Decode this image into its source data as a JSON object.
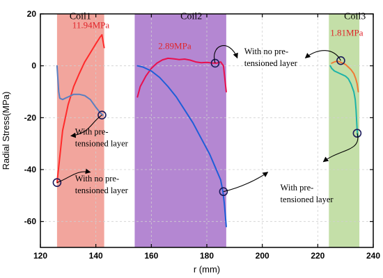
{
  "chart_data": {
    "type": "line",
    "xlabel": "r (mm)",
    "ylabel": "Radial Stress(MPa)",
    "xlim": [
      120,
      240
    ],
    "ylim": [
      -70,
      20
    ],
    "xticks": [
      120,
      140,
      160,
      180,
      200,
      220,
      240
    ],
    "yticks": [
      -60,
      -40,
      -20,
      0,
      20
    ],
    "xtick_labels": [
      "120",
      "140",
      "160",
      "180",
      "200",
      "220",
      "240"
    ],
    "ytick_labels": [
      "-60",
      "-40",
      "-20",
      "0",
      "20"
    ],
    "grid": true,
    "regions": [
      {
        "label": "Coil1",
        "x0": 126,
        "x1": 143,
        "color": "#f2a59d"
      },
      {
        "label": "Coil2",
        "x0": 154,
        "x1": 187,
        "color": "#b487d2"
      },
      {
        "label": "Coil3",
        "x0": 224,
        "x1": 235,
        "color": "#c4dfa8"
      }
    ],
    "series": [
      {
        "color": "#ff2a2a",
        "points": [
          [
            126,
            -45
          ],
          [
            127,
            -35
          ],
          [
            128,
            -25
          ],
          [
            130,
            -15
          ],
          [
            132,
            -8
          ],
          [
            134,
            -3
          ],
          [
            136,
            1.5
          ],
          [
            138,
            5
          ],
          [
            140,
            8.5
          ],
          [
            141.5,
            11
          ],
          [
            142.2,
            11.94
          ],
          [
            142.5,
            10
          ],
          [
            143,
            7
          ]
        ]
      },
      {
        "color": "#5a7fc0",
        "points": [
          [
            126,
            0
          ],
          [
            126.3,
            -5
          ],
          [
            126.6,
            -10
          ],
          [
            127,
            -12.5
          ],
          [
            128,
            -13
          ],
          [
            129,
            -12.5
          ],
          [
            130,
            -12
          ],
          [
            131,
            -11.5
          ],
          [
            132,
            -11
          ],
          [
            134,
            -11
          ],
          [
            136,
            -11.5
          ],
          [
            138,
            -13
          ],
          [
            140,
            -16
          ],
          [
            141.5,
            -18
          ],
          [
            142.5,
            -19
          ]
        ]
      },
      {
        "color": "#e8104e",
        "points": [
          [
            155,
            -12
          ],
          [
            156,
            -8
          ],
          [
            158,
            -4
          ],
          [
            160,
            -1
          ],
          [
            162,
            1
          ],
          [
            164,
            2.3
          ],
          [
            166,
            2.89
          ],
          [
            168,
            2.7
          ],
          [
            170,
            2.4
          ],
          [
            172,
            2.6
          ],
          [
            174,
            2.2
          ],
          [
            176,
            1.5
          ],
          [
            178,
            1.2
          ],
          [
            180,
            1.3
          ],
          [
            182,
            1.1
          ],
          [
            183.5,
            1
          ],
          [
            185,
            1.5
          ],
          [
            186,
            0
          ],
          [
            186.5,
            -5
          ],
          [
            187,
            -10
          ]
        ]
      },
      {
        "color": "#1e5ed8",
        "points": [
          [
            155,
            0
          ],
          [
            157,
            -0.5
          ],
          [
            160,
            -2
          ],
          [
            163,
            -4.5
          ],
          [
            166,
            -8
          ],
          [
            169,
            -12
          ],
          [
            172,
            -17
          ],
          [
            175,
            -22
          ],
          [
            177,
            -26
          ],
          [
            179,
            -30
          ],
          [
            181,
            -34
          ],
          [
            183,
            -39
          ],
          [
            185,
            -44
          ],
          [
            185.8,
            -48.5
          ],
          [
            186.3,
            -53
          ],
          [
            186.7,
            -58
          ],
          [
            187,
            -62
          ]
        ]
      },
      {
        "color": "#f07a35",
        "points": [
          [
            225,
            1
          ],
          [
            226,
            1.5
          ],
          [
            227,
            1.81
          ],
          [
            228,
            1.5
          ],
          [
            229,
            1
          ],
          [
            230,
            0.5
          ],
          [
            231,
            -0.5
          ],
          [
            232,
            -1.5
          ],
          [
            233,
            -3
          ],
          [
            233.7,
            -5
          ],
          [
            234.2,
            -7
          ],
          [
            234.6,
            -10
          ]
        ]
      },
      {
        "color": "#1cb3a8",
        "points": [
          [
            224.5,
            0
          ],
          [
            225,
            -1
          ],
          [
            226,
            -2
          ],
          [
            227,
            -2.5
          ],
          [
            228,
            -3
          ],
          [
            229,
            -3.5
          ],
          [
            230,
            -4
          ],
          [
            231,
            -5
          ],
          [
            232,
            -7
          ],
          [
            233,
            -10
          ],
          [
            233.5,
            -13
          ],
          [
            233.8,
            -17
          ],
          [
            234,
            -21
          ],
          [
            234.2,
            -25
          ],
          [
            234.4,
            -27
          ]
        ]
      }
    ],
    "markers": [
      [
        126,
        -45
      ],
      [
        142.2,
        -19
      ],
      [
        183,
        1
      ],
      [
        186,
        -48.5
      ],
      [
        228.3,
        2
      ],
      [
        234.2,
        -26
      ]
    ],
    "peak_labels": [
      {
        "text": "11.94MPa",
        "x": 131.5,
        "y": 14.5,
        "color": "#e0242a"
      },
      {
        "text": "2.89MPa",
        "x": 162.5,
        "y": 6.5,
        "color": "#e0242a"
      },
      {
        "text": "1.81MPa",
        "x": 224.5,
        "y": 11.5,
        "color": "#e0242a"
      }
    ],
    "annotations": [
      {
        "lines": [
          "With pre-",
          "tensioned layer"
        ],
        "x": 132.5,
        "y": -26.5
      },
      {
        "lines": [
          "With no pre-",
          "tensioned layer"
        ],
        "x": 132.5,
        "y": -44.5
      },
      {
        "lines": [
          "With no pre-",
          "tensioned layer"
        ],
        "x": 193.5,
        "y": 4.5
      },
      {
        "lines": [
          "With pre-",
          "tensioned layer"
        ],
        "x": 206.5,
        "y": -48
      },
      {
        "lines": [
          "Coil1"
        ],
        "x": 130.5,
        "y": 18
      },
      {
        "lines": [
          "Coil2"
        ],
        "x": 170.5,
        "y": 18
      },
      {
        "lines": [
          "Coil3"
        ],
        "x": 229.5,
        "y": 18
      }
    ]
  }
}
